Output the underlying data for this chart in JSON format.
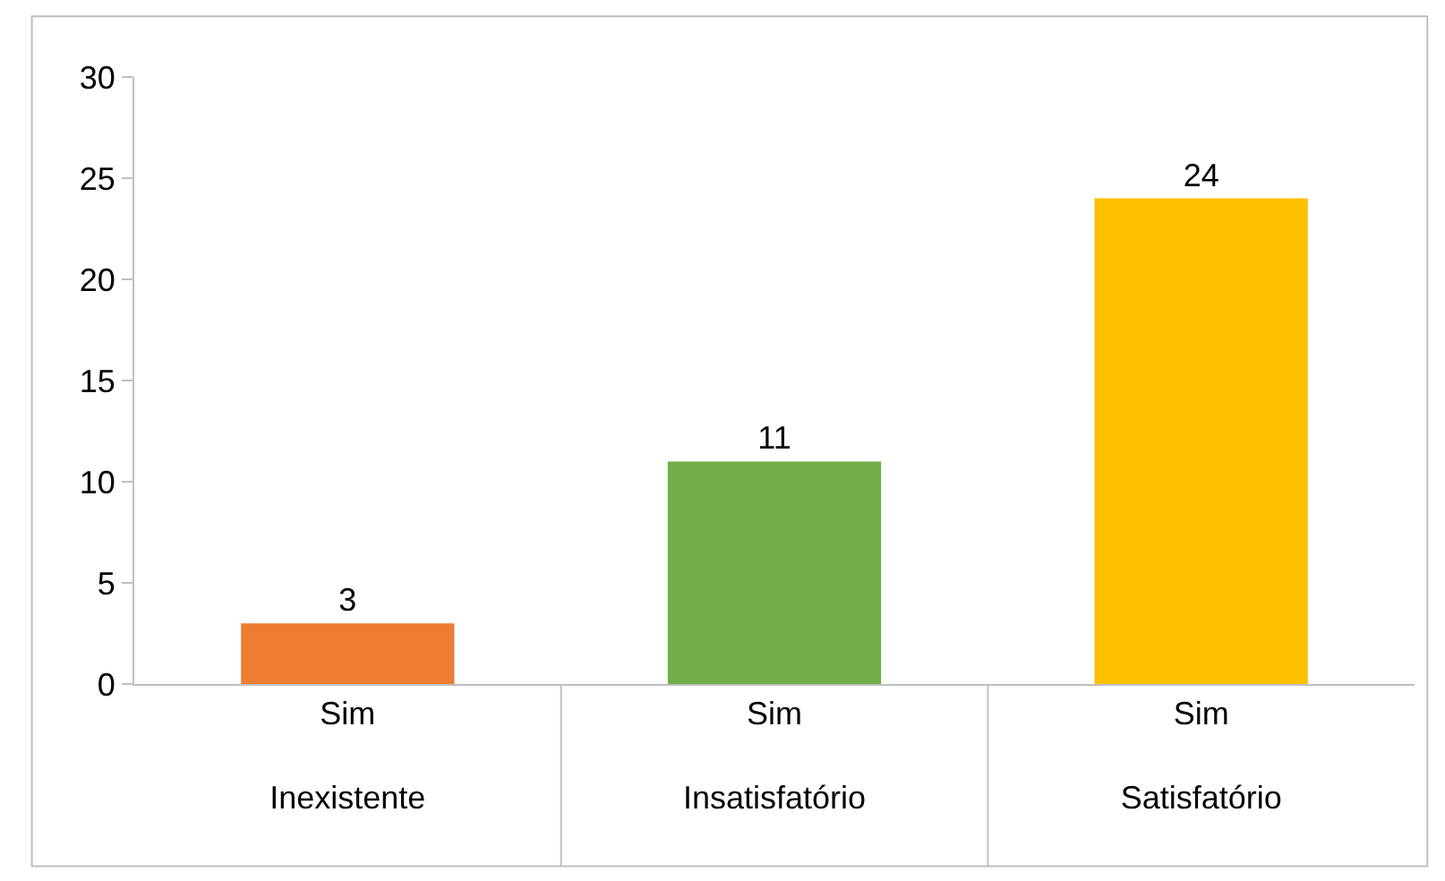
{
  "chart_data": {
    "type": "bar",
    "categories": [
      "Sim\nInexistente",
      "Sim\nInsatisfatório",
      "Sim\nSatisfatório"
    ],
    "values": [
      3,
      11,
      24
    ],
    "colors": [
      "#ed7d31",
      "#70ad47",
      "#ffc000"
    ],
    "ylim": [
      0,
      30
    ],
    "yticks": [
      0,
      5,
      10,
      15,
      20,
      25,
      30
    ],
    "grid": false,
    "data_labels": true
  }
}
